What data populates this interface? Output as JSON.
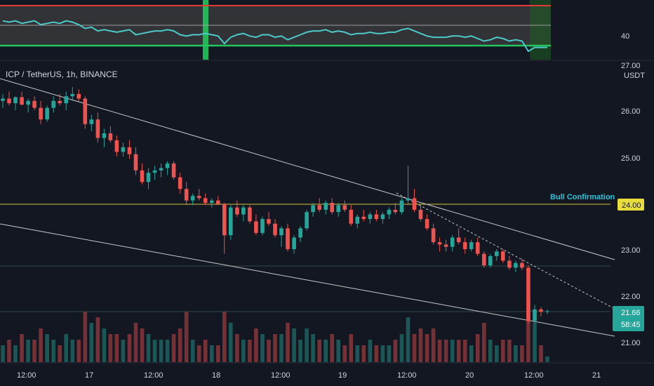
{
  "header": {
    "symbol_line": "ICP / TetherUS, 1h, BINANCE"
  },
  "price_axis": {
    "currency": "USDT",
    "labels": [
      "27.00",
      "26.00",
      "25.00",
      "24.00",
      "23.00",
      "22.00",
      "21.00"
    ]
  },
  "rsi_axis": {
    "labels": [
      "40"
    ]
  },
  "time_axis": {
    "labels": [
      "12:00",
      "17",
      "12:00",
      "18",
      "12:00",
      "19",
      "12:00",
      "20",
      "12:00",
      "21"
    ]
  },
  "annotations": {
    "bull_label": "Bull Confirmation",
    "bull_price": "24.00",
    "last_price": "21.66",
    "countdown": "58:45"
  },
  "colors": {
    "background": "#131722",
    "up": "#26a69a",
    "down": "#ef5350",
    "bull_line": "#d4c43a",
    "bull_text": "#26c6da",
    "rsi_line": "#4ec9c9",
    "rsi_upper": "#e53935",
    "rsi_lower": "#22c55e",
    "trendline": "#c8c8c8"
  },
  "chart_data": {
    "type": "candlestick",
    "title": "ICP / TetherUS, 1h, BINANCE",
    "y_unit": "USDT",
    "ylim": [
      20.8,
      27.0
    ],
    "x_ticks": [
      "12:00",
      "17",
      "12:00",
      "18",
      "12:00",
      "19",
      "12:00",
      "20",
      "12:00",
      "21"
    ],
    "horizontal_level": {
      "label": "Bull Confirmation",
      "value": 24.0
    },
    "last_price": 21.66,
    "candles_ohlc": [
      [
        26.2,
        26.35,
        26.05,
        26.25
      ],
      [
        26.25,
        26.4,
        26.1,
        26.15
      ],
      [
        26.15,
        26.3,
        26.0,
        26.28
      ],
      [
        26.28,
        26.4,
        26.1,
        26.12
      ],
      [
        26.12,
        26.25,
        25.95,
        26.2
      ],
      [
        26.2,
        26.3,
        26.0,
        26.05
      ],
      [
        26.05,
        26.2,
        25.7,
        25.8
      ],
      [
        25.8,
        26.1,
        25.75,
        26.05
      ],
      [
        26.05,
        26.3,
        25.95,
        26.2
      ],
      [
        26.2,
        26.35,
        26.1,
        26.15
      ],
      [
        26.15,
        26.4,
        26.0,
        26.3
      ],
      [
        26.3,
        26.5,
        26.2,
        26.35
      ],
      [
        26.35,
        26.45,
        26.2,
        26.25
      ],
      [
        26.25,
        26.3,
        25.6,
        25.7
      ],
      [
        25.7,
        25.9,
        25.55,
        25.8
      ],
      [
        25.8,
        25.95,
        25.3,
        25.4
      ],
      [
        25.4,
        25.6,
        25.2,
        25.5
      ],
      [
        25.5,
        25.65,
        25.3,
        25.35
      ],
      [
        25.35,
        25.45,
        25.0,
        25.1
      ],
      [
        25.1,
        25.3,
        25.0,
        25.2
      ],
      [
        25.2,
        25.35,
        24.95,
        25.05
      ],
      [
        25.05,
        25.2,
        24.6,
        24.7
      ],
      [
        24.7,
        24.85,
        24.4,
        24.45
      ],
      [
        24.45,
        24.75,
        24.3,
        24.65
      ],
      [
        24.65,
        24.8,
        24.5,
        24.7
      ],
      [
        24.7,
        24.85,
        24.55,
        24.75
      ],
      [
        24.75,
        24.9,
        24.6,
        24.85
      ],
      [
        24.85,
        24.9,
        24.5,
        24.55
      ],
      [
        24.55,
        24.65,
        24.2,
        24.3
      ],
      [
        24.3,
        24.45,
        23.95,
        24.05
      ],
      [
        24.05,
        24.2,
        23.95,
        24.15
      ],
      [
        24.15,
        24.3,
        24.05,
        24.1
      ],
      [
        24.1,
        24.2,
        23.95,
        24.0
      ],
      [
        24.0,
        24.1,
        23.9,
        24.05
      ],
      [
        24.05,
        24.15,
        23.95,
        23.98
      ],
      [
        23.98,
        24.0,
        22.9,
        23.3
      ],
      [
        23.3,
        23.95,
        23.2,
        23.9
      ],
      [
        23.9,
        24.05,
        23.7,
        23.75
      ],
      [
        23.75,
        23.95,
        23.6,
        23.9
      ],
      [
        23.9,
        23.95,
        23.55,
        23.6
      ],
      [
        23.6,
        23.75,
        23.3,
        23.35
      ],
      [
        23.35,
        23.7,
        23.3,
        23.65
      ],
      [
        23.65,
        23.8,
        23.5,
        23.55
      ],
      [
        23.55,
        23.65,
        23.25,
        23.3
      ],
      [
        23.3,
        23.5,
        23.05,
        23.45
      ],
      [
        23.45,
        23.55,
        22.95,
        23.0
      ],
      [
        23.0,
        23.3,
        22.9,
        23.25
      ],
      [
        23.25,
        23.5,
        23.15,
        23.45
      ],
      [
        23.45,
        23.85,
        23.4,
        23.8
      ],
      [
        23.8,
        24.0,
        23.7,
        23.95
      ],
      [
        23.95,
        24.1,
        23.8,
        23.85
      ],
      [
        23.85,
        24.05,
        23.75,
        24.0
      ],
      [
        24.0,
        24.1,
        23.75,
        23.8
      ],
      [
        23.8,
        24.0,
        23.7,
        23.95
      ],
      [
        23.95,
        24.05,
        23.8,
        23.85
      ],
      [
        23.85,
        23.95,
        23.5,
        23.55
      ],
      [
        23.55,
        23.75,
        23.45,
        23.7
      ],
      [
        23.7,
        23.85,
        23.6,
        23.65
      ],
      [
        23.65,
        23.8,
        23.55,
        23.75
      ],
      [
        23.75,
        23.85,
        23.6,
        23.65
      ],
      [
        23.65,
        23.8,
        23.55,
        23.75
      ],
      [
        23.75,
        23.9,
        23.65,
        23.85
      ],
      [
        23.85,
        24.0,
        23.75,
        23.8
      ],
      [
        23.8,
        24.1,
        23.75,
        24.05
      ],
      [
        24.05,
        24.8,
        23.95,
        24.1
      ],
      [
        24.1,
        24.3,
        23.8,
        23.85
      ],
      [
        23.85,
        23.95,
        23.6,
        23.65
      ],
      [
        23.65,
        23.75,
        23.4,
        23.45
      ],
      [
        23.45,
        23.55,
        23.1,
        23.15
      ],
      [
        23.15,
        23.25,
        22.95,
        23.1
      ],
      [
        23.1,
        23.2,
        22.95,
        23.05
      ],
      [
        23.05,
        23.3,
        22.95,
        23.25
      ],
      [
        23.25,
        23.45,
        23.1,
        23.15
      ],
      [
        23.15,
        23.25,
        22.9,
        23.0
      ],
      [
        23.0,
        23.2,
        22.95,
        23.15
      ],
      [
        23.15,
        23.25,
        22.85,
        22.9
      ],
      [
        22.9,
        22.95,
        22.6,
        22.65
      ],
      [
        22.65,
        22.9,
        22.6,
        22.85
      ],
      [
        22.85,
        23.0,
        22.75,
        22.95
      ],
      [
        22.95,
        23.0,
        22.7,
        22.75
      ],
      [
        22.75,
        22.85,
        22.55,
        22.6
      ],
      [
        22.6,
        22.75,
        22.5,
        22.7
      ],
      [
        22.7,
        22.8,
        22.55,
        22.6
      ],
      [
        22.6,
        22.65,
        21.4,
        21.45
      ],
      [
        21.45,
        21.8,
        21.4,
        21.7
      ],
      [
        21.7,
        21.75,
        21.55,
        21.65
      ],
      [
        21.65,
        21.7,
        21.6,
        21.66
      ]
    ],
    "volume_relative": [
      3,
      4,
      3,
      5,
      4,
      4,
      6,
      5,
      4,
      3,
      5,
      4,
      4,
      9,
      7,
      8,
      6,
      5,
      5,
      4,
      5,
      7,
      6,
      5,
      4,
      4,
      4,
      5,
      6,
      9,
      4,
      3,
      4,
      3,
      3,
      9,
      7,
      5,
      4,
      4,
      6,
      5,
      4,
      5,
      5,
      7,
      6,
      4,
      6,
      5,
      4,
      4,
      5,
      4,
      3,
      5,
      3,
      3,
      4,
      3,
      3,
      3,
      4,
      5,
      8,
      5,
      6,
      5,
      6,
      4,
      4,
      4,
      4,
      4,
      3,
      5,
      7,
      4,
      3,
      4,
      4,
      3,
      3,
      11,
      7,
      3,
      1
    ],
    "rsi_panel": {
      "axis_label": "40",
      "values": [
        58,
        57,
        58,
        56,
        57,
        58,
        55,
        56,
        57,
        56,
        58,
        57,
        55,
        52,
        53,
        50,
        51,
        50,
        49,
        50,
        51,
        47,
        48,
        49,
        50,
        50,
        51,
        50,
        47,
        46,
        47,
        47,
        48,
        47,
        46,
        40,
        45,
        47,
        48,
        46,
        45,
        47,
        47,
        45,
        46,
        43,
        45,
        47,
        49,
        50,
        50,
        51,
        49,
        50,
        49,
        47,
        48,
        48,
        49,
        48,
        48,
        49,
        49,
        51,
        52,
        50,
        48,
        46,
        45,
        45,
        45,
        46,
        46,
        45,
        46,
        44,
        42,
        43,
        45,
        44,
        42,
        43,
        42,
        34,
        37,
        37,
        37
      ]
    }
  }
}
